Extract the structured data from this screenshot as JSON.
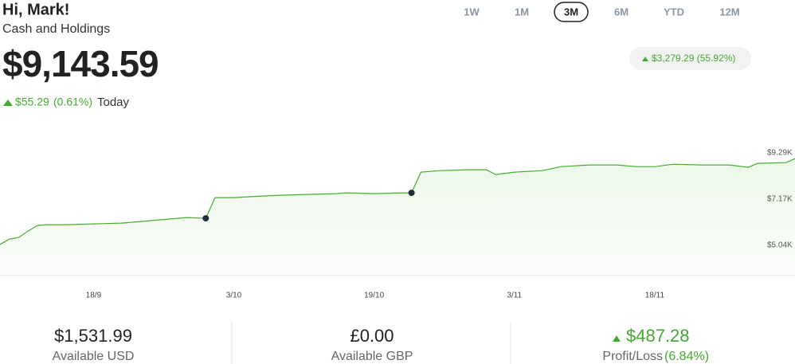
{
  "header": {
    "greeting": "Hi, Mark!",
    "subtitle": "Cash and Holdings"
  },
  "balance": "$9,143.59",
  "today": {
    "change": "$55.29",
    "percent": "(0.61%)",
    "label": "Today"
  },
  "ranges": {
    "options": [
      "1W",
      "1M",
      "3M",
      "6M",
      "YTD",
      "12M"
    ],
    "selected": 2
  },
  "period_change": "$3,279.29 (55.92%)",
  "chart_data": {
    "type": "line",
    "x": [
      0,
      1,
      2,
      3,
      4,
      5,
      7,
      10,
      13,
      16,
      18,
      20,
      22,
      23,
      25,
      28,
      30,
      33,
      36,
      37,
      40,
      43,
      44,
      45,
      47,
      50,
      52,
      53,
      55,
      58,
      60,
      63,
      66,
      68,
      70,
      72,
      75,
      78,
      80,
      81,
      84,
      85
    ],
    "series": [
      {
        "color": "#43b02a",
        "values": [
          5077,
          5333,
          5406,
          5699,
          5955,
          5992,
          5992,
          6028,
          6065,
          6175,
          6248,
          6321,
          6284,
          7236,
          7236,
          7309,
          7346,
          7382,
          7419,
          7456,
          7419,
          7456,
          7456,
          8407,
          8480,
          8517,
          8517,
          8297,
          8407,
          8480,
          8663,
          8737,
          8737,
          8663,
          8663,
          8773,
          8737,
          8737,
          8627,
          8810,
          8846,
          9029
        ]
      }
    ],
    "marked_points": [
      12,
      22
    ],
    "xlim": [
      0,
      85
    ],
    "xticks": [
      {
        "value": 10,
        "label": "18/9"
      },
      {
        "value": 25,
        "label": "3/10"
      },
      {
        "value": 40,
        "label": "19/10"
      },
      {
        "value": 55,
        "label": "3/11"
      },
      {
        "value": 70,
        "label": "18/11"
      }
    ],
    "ylim": [
      3650,
      10830
    ],
    "yticks": [
      {
        "value": 5040,
        "label": "$5.04K"
      },
      {
        "value": 7170,
        "label": "$7.17K"
      },
      {
        "value": 9290,
        "label": "$9.29K"
      }
    ],
    "grid": false
  },
  "stats": [
    {
      "value": "$1,531.99",
      "label": "Available USD"
    },
    {
      "value": "£0.00",
      "label": "Available GBP"
    },
    {
      "value": "$487.28",
      "label": "Profit/Loss",
      "percent": "(6.84%)"
    }
  ]
}
